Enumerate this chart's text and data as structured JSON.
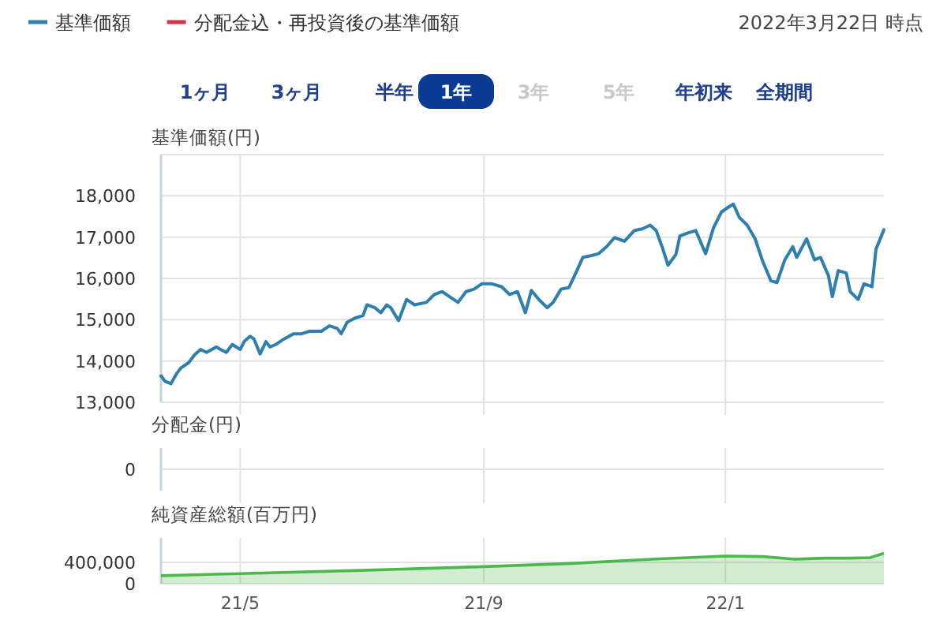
{
  "chart_data": [
    {
      "type": "line",
      "title": "基準価額(円)",
      "subtitle": "2022年3月22日 時点",
      "legend": "top left",
      "grid": true,
      "tick_labels": "y",
      "annotations": [
        "1ヶ月",
        "3ヶ月",
        "半年",
        "1年",
        "3年",
        "5年",
        "年初来",
        "全期間"
      ],
      "xlim": [
        "2021-03-22",
        "2022-03-22"
      ],
      "xticks": [
        {
          "value": "2021-05-01",
          "label": null
        },
        {
          "value": "2021-09-01",
          "label": null
        },
        {
          "value": "2022-01-01",
          "label": null
        }
      ],
      "ylim": [
        13000,
        19000
      ],
      "yticks": [
        {
          "value": 13000,
          "label": "13,000"
        },
        {
          "value": 14000,
          "label": "14,000"
        },
        {
          "value": 15000,
          "label": "15,000"
        },
        {
          "value": 16000,
          "label": "16,000"
        },
        {
          "value": 17000,
          "label": "17,000"
        },
        {
          "value": 18000,
          "label": "18,000"
        },
        {
          "value": 19000,
          "label": null
        }
      ],
      "x": [
        "2021-03-22",
        "2021-03-24",
        "2021-03-27",
        "2021-03-30",
        "2021-04-01",
        "2021-04-05",
        "2021-04-08",
        "2021-04-11",
        "2021-04-14",
        "2021-04-19",
        "2021-04-21",
        "2021-04-24",
        "2021-04-27",
        "2021-05-01",
        "2021-05-03",
        "2021-05-06",
        "2021-05-08",
        "2021-05-11",
        "2021-05-14",
        "2021-05-16",
        "2021-05-19",
        "2021-05-23",
        "2021-05-28",
        "2021-06-01",
        "2021-06-05",
        "2021-06-11",
        "2021-06-15",
        "2021-06-19",
        "2021-06-21",
        "2021-06-24",
        "2021-06-28",
        "2021-07-02",
        "2021-07-04",
        "2021-07-08",
        "2021-07-11",
        "2021-07-14",
        "2021-07-16",
        "2021-07-20",
        "2021-07-24",
        "2021-07-28",
        "2021-08-03",
        "2021-08-07",
        "2021-08-11",
        "2021-08-15",
        "2021-08-19",
        "2021-08-23",
        "2021-08-27",
        "2021-08-31",
        "2021-09-05",
        "2021-09-10",
        "2021-09-14",
        "2021-09-18",
        "2021-09-22",
        "2021-09-25",
        "2021-09-29",
        "2021-10-03",
        "2021-10-06",
        "2021-10-10",
        "2021-10-14",
        "2021-10-18",
        "2021-10-21",
        "2021-10-25",
        "2021-10-29",
        "2021-11-02",
        "2021-11-06",
        "2021-11-11",
        "2021-11-16",
        "2021-11-20",
        "2021-11-24",
        "2021-11-27",
        "2021-11-30",
        "2021-12-03",
        "2021-12-07",
        "2021-12-09",
        "2021-12-13",
        "2021-12-17",
        "2021-12-22",
        "2021-12-26",
        "2021-12-30",
        "2022-01-02",
        "2022-01-05",
        "2022-01-08",
        "2022-01-12",
        "2022-01-16",
        "2022-01-20",
        "2022-01-24",
        "2022-01-27",
        "2022-01-31",
        "2022-02-04",
        "2022-02-06",
        "2022-02-11",
        "2022-02-15",
        "2022-02-18",
        "2022-02-22",
        "2022-02-24",
        "2022-02-27",
        "2022-03-03",
        "2022-03-05",
        "2022-03-09",
        "2022-03-12",
        "2022-03-16",
        "2022-03-18",
        "2022-03-22"
      ],
      "series": [
        {
          "name": "基準価額",
          "color": "#2e7fae",
          "values": [
            13640,
            13510,
            13450,
            13700,
            13830,
            13960,
            14150,
            14280,
            14210,
            14340,
            14280,
            14210,
            14400,
            14280,
            14470,
            14600,
            14530,
            14170,
            14470,
            14340,
            14400,
            14530,
            14660,
            14660,
            14720,
            14720,
            14850,
            14790,
            14660,
            14940,
            15040,
            15100,
            15360,
            15290,
            15170,
            15360,
            15290,
            14980,
            15490,
            15360,
            15420,
            15610,
            15680,
            15550,
            15420,
            15680,
            15740,
            15870,
            15870,
            15800,
            15610,
            15680,
            15170,
            15710,
            15480,
            15290,
            15420,
            15740,
            15780,
            16190,
            16510,
            16550,
            16600,
            16770,
            16990,
            16900,
            17160,
            17200,
            17290,
            17160,
            16770,
            16320,
            16580,
            17030,
            17100,
            17160,
            16600,
            17230,
            17610,
            17710,
            17800,
            17480,
            17290,
            16960,
            16390,
            15940,
            15900,
            16450,
            16770,
            16510,
            16960,
            16450,
            16510,
            16070,
            15560,
            16190,
            16130,
            15680,
            15490,
            15870,
            15800,
            16700,
            17180
          ]
        },
        {
          "name": "分配金込・再投資後の基準価額",
          "color": "#d9333f",
          "values": [
            null,
            null,
            null,
            null,
            null,
            null,
            null,
            null,
            null,
            null,
            null,
            null,
            null,
            null,
            null,
            null,
            null,
            null,
            null,
            null,
            null,
            null,
            null,
            null,
            null,
            null,
            null,
            null,
            null,
            null,
            null,
            null,
            null,
            null,
            null,
            null,
            null,
            null,
            null,
            null,
            null,
            null,
            null,
            null,
            null,
            null,
            null,
            null,
            null,
            null,
            null,
            null,
            null,
            null,
            null,
            null,
            null,
            null,
            null,
            null,
            null,
            null,
            null,
            null,
            null,
            null,
            null,
            null,
            null,
            null,
            null,
            null,
            null,
            null,
            null,
            null,
            null,
            null,
            null,
            null,
            null,
            null,
            null,
            null,
            null,
            null,
            null,
            null,
            null,
            null,
            null,
            null,
            null,
            null,
            null,
            null,
            null,
            null,
            null,
            null,
            null,
            null,
            null
          ]
        }
      ]
    },
    {
      "type": "other",
      "title": "分配金(円)",
      "annotations": [
        "0"
      ]
    },
    {
      "type": "area",
      "title": "純資産総額(百万円)",
      "grid": true,
      "xlim": [
        "2021-03-22",
        "2022-03-22"
      ],
      "xticks": [
        {
          "value": "2021-05-01",
          "label": "21/5"
        },
        {
          "value": "2021-09-01",
          "label": "21/9"
        },
        {
          "value": "2022-01-01",
          "label": "22/1"
        }
      ],
      "ylim": [
        0,
        860000
      ],
      "yticks": [
        0,
        {
          "value": 400000,
          "label": "400,000"
        }
      ],
      "x": [
        "2021-03-22",
        "2021-05-01",
        "2021-07-01",
        "2021-09-01",
        "2021-10-15",
        "2021-11-15",
        "2021-12-01",
        "2022-01-01",
        "2022-01-20",
        "2022-02-05",
        "2022-02-20",
        "2022-03-05",
        "2022-03-15",
        "2022-03-22"
      ],
      "values": [
        150000,
        190000,
        250000,
        320000,
        380000,
        440000,
        470000,
        520000,
        510000,
        460000,
        480000,
        480000,
        490000,
        570000
      ],
      "color": "#4cb84c"
    }
  ]
}
